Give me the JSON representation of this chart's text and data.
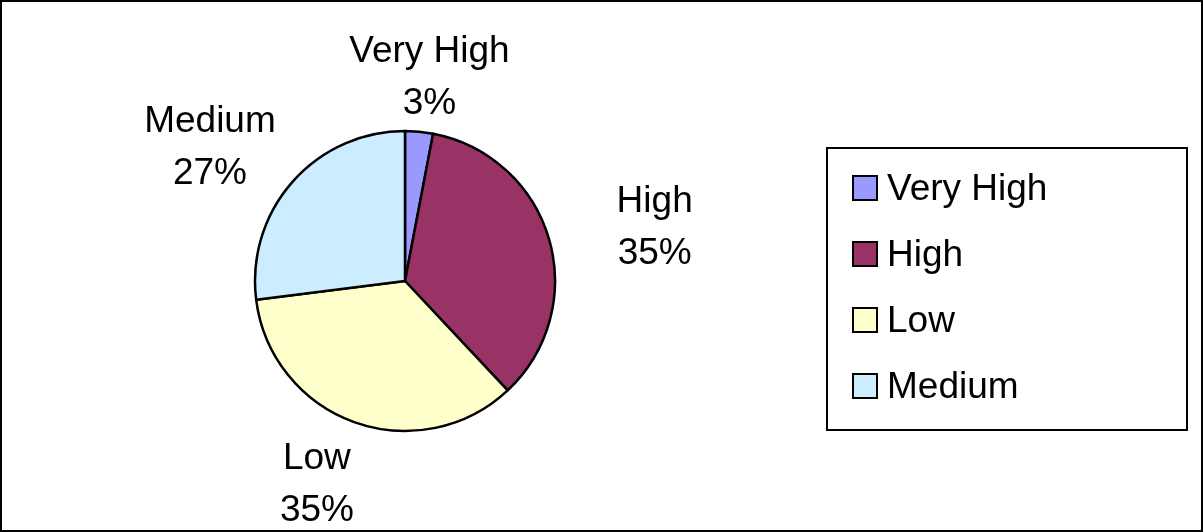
{
  "chart_data": {
    "type": "pie",
    "categories": [
      "Very High",
      "High",
      "Low",
      "Medium"
    ],
    "values": [
      3,
      35,
      35,
      27
    ],
    "value_labels": [
      "3%",
      "35%",
      "35%",
      "27%"
    ],
    "colors": [
      "#9999ff",
      "#993366",
      "#ffffcc",
      "#ccecff"
    ],
    "legend": "right"
  }
}
